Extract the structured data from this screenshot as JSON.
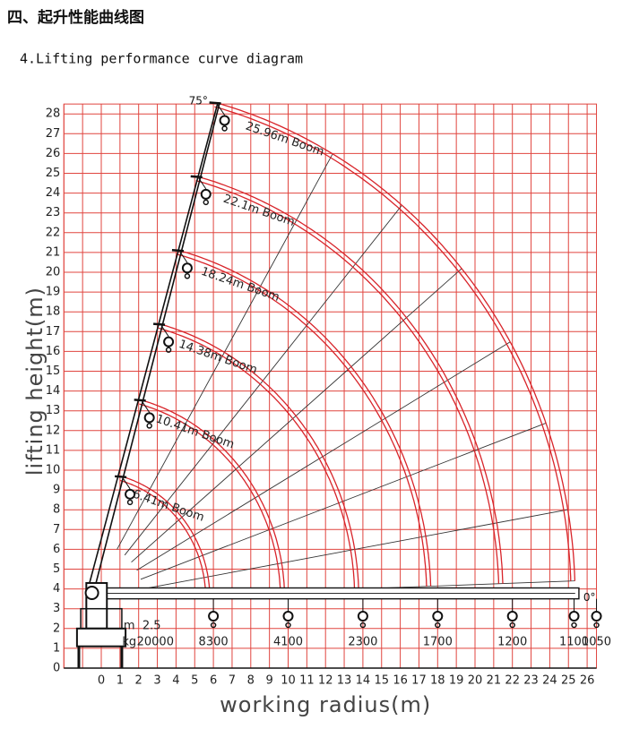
{
  "header": {
    "title": "四、起升性能曲线图",
    "subtitle": "4.Lifting performance curve diagram"
  },
  "diagram": {
    "y_axis_label": "lifting height(m)",
    "x_axis_label": "working radius(m)",
    "y_ticks": [
      0,
      1,
      2,
      3,
      4,
      5,
      6,
      7,
      8,
      9,
      10,
      11,
      12,
      13,
      14,
      15,
      16,
      17,
      18,
      19,
      20,
      21,
      22,
      23,
      24,
      25,
      26,
      27,
      28
    ],
    "x_ticks": [
      0,
      1,
      2,
      3,
      4,
      5,
      6,
      7,
      8,
      9,
      10,
      11,
      12,
      13,
      14,
      15,
      16,
      17,
      18,
      19,
      20,
      21,
      22,
      23,
      24,
      25,
      26
    ],
    "angle_max": "75°",
    "angle_min": "0°",
    "booms": [
      {
        "value": 6.41,
        "label": "6.41m Boom"
      },
      {
        "value": 10.41,
        "label": "10.41m Boom"
      },
      {
        "value": 14.38,
        "label": "14.38m Boom"
      },
      {
        "value": 18.24,
        "label": "18.24m Boom"
      },
      {
        "value": 22.1,
        "label": "22.1m Boom"
      },
      {
        "value": 25.96,
        "label": "25.96m Boom"
      }
    ],
    "load_radius_unit": "m",
    "load_weight_unit": "kg",
    "first_radius": 2.5,
    "weights": [
      20000,
      8300,
      4100,
      2300,
      1700,
      1200,
      1100,
      1050
    ]
  }
}
